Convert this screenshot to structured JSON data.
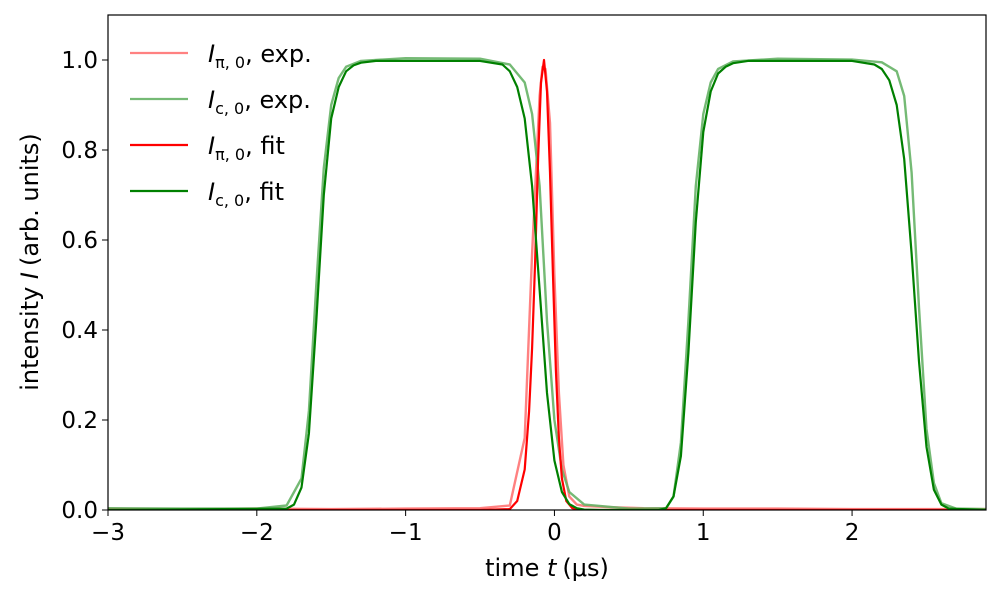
{
  "chart_data": {
    "type": "line",
    "xlabel": {
      "prefix": "time ",
      "variable": "t",
      "units": "(μs)"
    },
    "ylabel": {
      "prefix": "intensity ",
      "variable": "I",
      "units": "(arb. units)"
    },
    "xlim": [
      -3.0,
      2.9
    ],
    "ylim": [
      0.0,
      1.1
    ],
    "xticks": [
      -3,
      -2,
      -1,
      0,
      1,
      2
    ],
    "xtick_labels": [
      "−3",
      "−2",
      "−1",
      "0",
      "1",
      "2"
    ],
    "yticks": [
      0.0,
      0.2,
      0.4,
      0.6,
      0.8,
      1.0
    ],
    "ytick_labels": [
      "0.0",
      "0.2",
      "0.4",
      "0.6",
      "0.8",
      "1.0"
    ],
    "grid": false,
    "legend_position": "top-left",
    "series": [
      {
        "name": "I_{π,0}, exp.",
        "legend": {
          "symbol": "I",
          "sub": "π, 0",
          "suffix": ", exp."
        },
        "color": "#ff6b6b",
        "opacity": 0.85,
        "style": "experimental",
        "x": [
          -3.0,
          -2.5,
          -2.0,
          -1.5,
          -1.0,
          -0.5,
          -0.3,
          -0.2,
          -0.15,
          -0.1,
          -0.08,
          -0.06,
          -0.03,
          0.0,
          0.03,
          0.06,
          0.1,
          0.15,
          0.2,
          0.4,
          0.6,
          1.0,
          1.5,
          2.0,
          2.5,
          2.9
        ],
        "y": [
          0.003,
          0.002,
          0.003,
          0.002,
          0.003,
          0.004,
          0.01,
          0.16,
          0.57,
          0.92,
          0.985,
          0.98,
          0.86,
          0.52,
          0.26,
          0.1,
          0.03,
          0.012,
          0.009,
          0.006,
          0.004,
          0.003,
          0.003,
          0.002,
          0.002,
          0.002
        ]
      },
      {
        "name": "I_{c,0}, exp.",
        "legend": {
          "symbol": "I",
          "sub": "c, 0",
          "suffix": ", exp."
        },
        "color": "#66b266",
        "opacity": 0.9,
        "style": "experimental",
        "x": [
          -3.0,
          -2.5,
          -2.0,
          -1.8,
          -1.7,
          -1.65,
          -1.6,
          -1.55,
          -1.5,
          -1.45,
          -1.4,
          -1.3,
          -1.0,
          -0.5,
          -0.3,
          -0.2,
          -0.15,
          -0.1,
          -0.05,
          0.0,
          0.05,
          0.1,
          0.2,
          0.5,
          0.75,
          0.8,
          0.85,
          0.9,
          0.95,
          1.0,
          1.05,
          1.1,
          1.2,
          1.5,
          2.0,
          2.2,
          2.3,
          2.35,
          2.4,
          2.45,
          2.5,
          2.55,
          2.6,
          2.7,
          2.9
        ],
        "y": [
          0.004,
          0.003,
          0.003,
          0.01,
          0.07,
          0.22,
          0.5,
          0.76,
          0.9,
          0.96,
          0.985,
          0.998,
          1.004,
          1.003,
          0.99,
          0.95,
          0.88,
          0.72,
          0.42,
          0.2,
          0.09,
          0.04,
          0.012,
          0.003,
          0.004,
          0.03,
          0.15,
          0.42,
          0.72,
          0.88,
          0.95,
          0.98,
          0.997,
          1.003,
          1.001,
          0.995,
          0.975,
          0.92,
          0.75,
          0.45,
          0.18,
          0.06,
          0.015,
          0.003,
          0.002
        ]
      },
      {
        "name": "I_{π,0}, fit",
        "legend": {
          "symbol": "I",
          "sub": "π, 0",
          "suffix": ", fit"
        },
        "color": "#ff0000",
        "opacity": 1,
        "style": "fit",
        "x": [
          -3.0,
          -0.5,
          -0.3,
          -0.25,
          -0.2,
          -0.17,
          -0.15,
          -0.13,
          -0.11,
          -0.09,
          -0.07,
          -0.05,
          -0.03,
          -0.01,
          0.01,
          0.03,
          0.05,
          0.08,
          0.12,
          0.2,
          0.5,
          2.9
        ],
        "y": [
          0.0,
          0.0,
          0.002,
          0.02,
          0.09,
          0.22,
          0.36,
          0.55,
          0.78,
          0.95,
          1.0,
          0.93,
          0.75,
          0.52,
          0.31,
          0.16,
          0.07,
          0.02,
          0.004,
          0.0,
          0.0,
          0.0
        ]
      },
      {
        "name": "I_{c,0}, fit",
        "legend": {
          "symbol": "I",
          "sub": "c, 0",
          "suffix": ", fit"
        },
        "color": "#008000",
        "opacity": 1,
        "style": "fit",
        "x": [
          -3.0,
          -1.8,
          -1.75,
          -1.7,
          -1.65,
          -1.6,
          -1.55,
          -1.5,
          -1.45,
          -1.4,
          -1.35,
          -1.3,
          -1.2,
          -0.5,
          -0.35,
          -0.3,
          -0.25,
          -0.2,
          -0.15,
          -0.1,
          -0.05,
          0.0,
          0.05,
          0.1,
          0.15,
          0.2,
          0.3,
          0.7,
          0.75,
          0.8,
          0.85,
          0.9,
          0.95,
          1.0,
          1.05,
          1.1,
          1.15,
          1.2,
          1.3,
          2.0,
          2.15,
          2.2,
          2.25,
          2.3,
          2.35,
          2.4,
          2.45,
          2.5,
          2.55,
          2.6,
          2.65,
          2.9
        ],
        "y": [
          0.0,
          0.003,
          0.012,
          0.05,
          0.17,
          0.42,
          0.7,
          0.87,
          0.94,
          0.975,
          0.988,
          0.994,
          0.998,
          0.998,
          0.99,
          0.975,
          0.94,
          0.87,
          0.72,
          0.49,
          0.26,
          0.11,
          0.04,
          0.013,
          0.004,
          0.001,
          0.0,
          0.0,
          0.004,
          0.03,
          0.12,
          0.35,
          0.64,
          0.84,
          0.93,
          0.97,
          0.985,
          0.993,
          0.998,
          0.998,
          0.99,
          0.98,
          0.955,
          0.9,
          0.78,
          0.57,
          0.33,
          0.14,
          0.045,
          0.012,
          0.003,
          0.0
        ]
      }
    ]
  }
}
